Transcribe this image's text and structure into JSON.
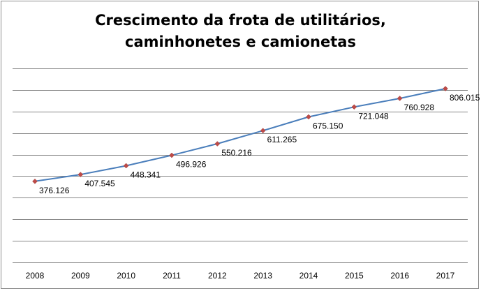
{
  "chart_data": {
    "type": "line",
    "title_lines": [
      "Crescimento da frota de utilitários,",
      "caminhonetes e camionetas"
    ],
    "categories": [
      "2008",
      "2009",
      "2010",
      "2011",
      "2012",
      "2013",
      "2014",
      "2015",
      "2016",
      "2017"
    ],
    "values": [
      376126,
      407545,
      448341,
      496926,
      550216,
      611265,
      675150,
      721048,
      760928,
      806015
    ],
    "data_labels": [
      "376.126",
      "407.545",
      "448.341",
      "496.926",
      "550.216",
      "611.265",
      "675.150",
      "721.048",
      "760.928",
      "806.015"
    ],
    "ylim": [
      0,
      900000
    ],
    "gridlines": true,
    "y_tick_labels_shown": false,
    "legend": "none",
    "colors": {
      "line": "#4a7ebb",
      "marker": "#be4b48",
      "grid": "#868686"
    }
  }
}
